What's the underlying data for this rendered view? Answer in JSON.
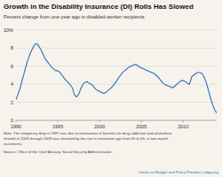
{
  "chart_data": {
    "type": "line",
    "title": "Growth in the Disability Insurance (DI) Rolls Has Slowed",
    "subtitle": "Percent change from one year ago in disabled-worker recipients",
    "notes": [
      "Note: The temporary drop in 1997 was due to termination of benefits for drug addiction and alcoholism.",
      "Growth in 2003 through 2009 was elevated by the rise in retirement age from 65 to 66, in two-month",
      "increments."
    ],
    "source": "Source: Office of the Chief Actuary, Social Security Administration.",
    "credit": "Center on Budget and Policy Priorities | cbpp.org",
    "color": "#2a6ebb",
    "grid": true,
    "xlim": [
      1990,
      2014
    ],
    "ylim": [
      0,
      10
    ],
    "xticks": [
      1990,
      1995,
      2000,
      2005,
      2010
    ],
    "yticks": [
      {
        "value": 0,
        "label": "0"
      },
      2,
      4,
      6,
      8,
      {
        "value": 10,
        "label": "10%"
      }
    ],
    "x": [
      1990.0,
      1990.25,
      1990.5,
      1990.75,
      1991.0,
      1991.25,
      1991.5,
      1991.75,
      1992.0,
      1992.25,
      1992.5,
      1992.75,
      1993.0,
      1993.25,
      1993.5,
      1993.75,
      1994.0,
      1994.25,
      1994.5,
      1994.75,
      1995.0,
      1995.25,
      1995.5,
      1995.75,
      1996.0,
      1996.25,
      1996.5,
      1996.75,
      1997.0,
      1997.25,
      1997.5,
      1997.75,
      1998.0,
      1998.25,
      1998.5,
      1998.75,
      1999.0,
      1999.25,
      1999.5,
      1999.75,
      2000.0,
      2000.25,
      2000.5,
      2000.75,
      2001.0,
      2001.25,
      2001.5,
      2001.75,
      2002.0,
      2002.25,
      2002.5,
      2002.75,
      2003.0,
      2003.25,
      2003.5,
      2003.75,
      2004.0,
      2004.25,
      2004.5,
      2004.75,
      2005.0,
      2005.25,
      2005.5,
      2005.75,
      2006.0,
      2006.25,
      2006.5,
      2006.75,
      2007.0,
      2007.25,
      2007.5,
      2007.75,
      2008.0,
      2008.25,
      2008.5,
      2008.75,
      2009.0,
      2009.25,
      2009.5,
      2009.75,
      2010.0,
      2010.25,
      2010.5,
      2010.75,
      2011.0,
      2011.25,
      2011.5,
      2011.75,
      2012.0,
      2012.25,
      2012.5,
      2012.75,
      2013.0,
      2013.25,
      2013.5,
      2013.75,
      2014.0
    ],
    "values": [
      2.3,
      2.9,
      3.6,
      4.5,
      5.3,
      6.2,
      6.9,
      7.5,
      8.0,
      8.4,
      8.5,
      8.2,
      7.8,
      7.3,
      6.8,
      6.5,
      6.2,
      5.9,
      5.7,
      5.5,
      5.5,
      5.3,
      5.0,
      4.7,
      4.4,
      4.2,
      3.9,
      3.6,
      2.8,
      2.6,
      2.9,
      3.5,
      4.0,
      4.2,
      4.3,
      4.1,
      4.0,
      3.8,
      3.5,
      3.3,
      3.2,
      3.1,
      3.0,
      3.1,
      3.3,
      3.5,
      3.7,
      4.0,
      4.3,
      4.7,
      5.0,
      5.3,
      5.5,
      5.7,
      5.9,
      6.0,
      6.1,
      6.2,
      6.1,
      5.9,
      5.8,
      5.7,
      5.6,
      5.5,
      5.4,
      5.3,
      5.2,
      5.0,
      4.8,
      4.5,
      4.2,
      4.0,
      3.9,
      3.8,
      3.7,
      3.6,
      3.8,
      4.0,
      4.2,
      4.4,
      4.4,
      4.3,
      4.1,
      4.0,
      4.8,
      5.0,
      5.2,
      5.3,
      5.3,
      5.2,
      4.8,
      4.2,
      3.4,
      2.5,
      1.8,
      1.2,
      0.8
    ]
  }
}
